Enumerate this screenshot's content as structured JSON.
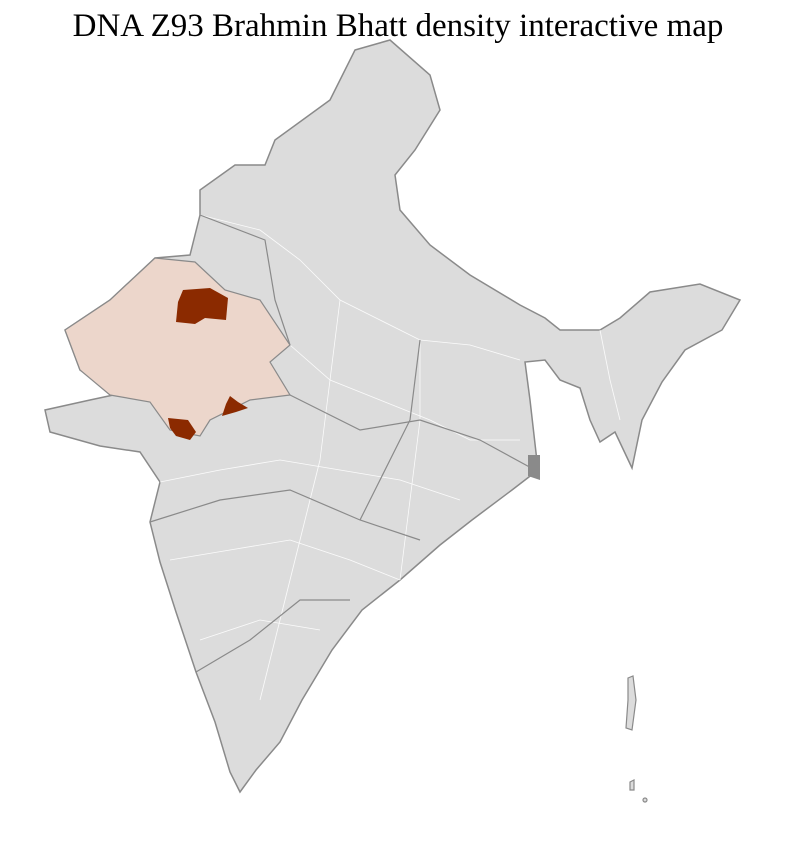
{
  "title": "DNA Z93 Brahmin Bhatt density interactive map",
  "colors": {
    "no_data": "#dcdcdc",
    "low_density": "#ecd6cb",
    "high_density": "#8b2a00",
    "state_border": "#8a8a8a",
    "district_border": "#ffffff"
  },
  "regions": [
    {
      "name": "Rajasthan",
      "level": "low"
    },
    {
      "name": "Churu / Jhunjhunu area",
      "level": "high"
    },
    {
      "name": "Sirohi / Banaskantha area",
      "level": "high"
    },
    {
      "name": "Chittorgarh / Neemuch area",
      "level": "high"
    }
  ]
}
